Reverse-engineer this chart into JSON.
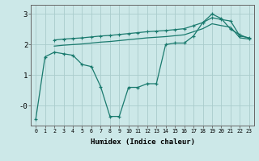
{
  "xlabel": "Humidex (Indice chaleur)",
  "bg_color": "#cce8e8",
  "line_color": "#1a7a6e",
  "grid_color": "#aacccc",
  "xlim": [
    -0.5,
    23.5
  ],
  "ylim": [
    -0.65,
    3.3
  ],
  "xticks": [
    0,
    1,
    2,
    3,
    4,
    5,
    6,
    7,
    8,
    9,
    10,
    11,
    12,
    13,
    14,
    15,
    16,
    17,
    18,
    19,
    20,
    21,
    22,
    23
  ],
  "yticks": [
    0,
    1,
    2,
    3
  ],
  "line1_x": [
    0,
    1,
    2,
    3,
    4,
    5,
    6,
    7,
    8,
    9,
    10,
    11,
    12,
    13,
    14,
    15,
    16,
    17,
    18,
    19,
    20,
    21,
    22,
    23
  ],
  "line1_y": [
    -0.45,
    1.6,
    1.75,
    1.7,
    1.65,
    1.35,
    1.28,
    0.62,
    -0.35,
    -0.35,
    0.6,
    0.6,
    0.72,
    0.72,
    2.0,
    2.05,
    2.05,
    2.28,
    2.72,
    3.0,
    2.85,
    2.5,
    2.32,
    2.2
  ],
  "line2_x": [
    2,
    3,
    4,
    5,
    6,
    7,
    8,
    9,
    10,
    11,
    12,
    13,
    14,
    15,
    16,
    17,
    18,
    19,
    20,
    21,
    22,
    23
  ],
  "line2_y": [
    2.15,
    2.18,
    2.2,
    2.22,
    2.25,
    2.28,
    2.3,
    2.33,
    2.36,
    2.39,
    2.42,
    2.44,
    2.46,
    2.49,
    2.52,
    2.62,
    2.72,
    2.88,
    2.82,
    2.77,
    2.28,
    2.22
  ],
  "line3_x": [
    2,
    3,
    4,
    5,
    6,
    7,
    8,
    9,
    10,
    11,
    12,
    13,
    14,
    15,
    16,
    17,
    18,
    19,
    20,
    21,
    22,
    23
  ],
  "line3_y": [
    1.95,
    1.98,
    2.0,
    2.02,
    2.05,
    2.08,
    2.1,
    2.13,
    2.16,
    2.19,
    2.22,
    2.24,
    2.26,
    2.29,
    2.32,
    2.42,
    2.52,
    2.68,
    2.62,
    2.57,
    2.22,
    2.18
  ]
}
